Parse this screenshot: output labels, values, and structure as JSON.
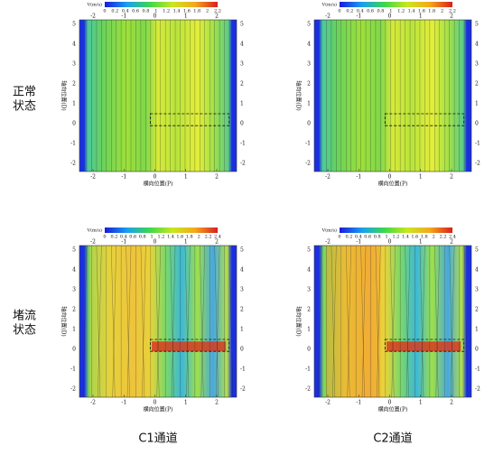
{
  "row_labels": [
    [
      "正常",
      "状态"
    ],
    [
      "堵流",
      "状态"
    ]
  ],
  "column_labels": [
    "C1通道",
    "C2通道"
  ],
  "panels": [
    {
      "colorbar_label": "V(m/s)",
      "colorbar_ticks": [
        0,
        0.2,
        0.4,
        0.6,
        0.8,
        1,
        1.2,
        1.4,
        1.6,
        1.8,
        2,
        2.2
      ],
      "x_ticks": [
        -2,
        -1,
        0,
        1,
        2
      ],
      "y_ticks": [
        5,
        4,
        3,
        2,
        1,
        0,
        -1,
        -2
      ],
      "x_label": "横向位置(P)",
      "y_label": "轴向位置(D)"
    },
    {
      "colorbar_label": "V(m/s)",
      "colorbar_ticks": [
        0,
        0.2,
        0.4,
        0.6,
        0.8,
        1,
        1.2,
        1.4,
        1.6,
        1.8,
        2,
        2.2
      ],
      "x_ticks": [
        -2,
        -1,
        0,
        1,
        2
      ],
      "y_ticks": [
        5,
        4,
        3,
        2,
        1,
        0,
        -1,
        -2
      ],
      "x_label": "横向位置(P)",
      "y_label": "轴向位置(D)"
    },
    {
      "colorbar_label": "V(m/s)",
      "colorbar_ticks": [
        0,
        0.2,
        0.4,
        0.6,
        0.8,
        1,
        1.2,
        1.4,
        1.6,
        1.8,
        2,
        2.2,
        2.4
      ],
      "x_ticks": [
        -2,
        -1,
        0,
        1,
        2
      ],
      "y_ticks": [
        5,
        4,
        3,
        2,
        1,
        0,
        -1,
        -2
      ],
      "x_label": "横向位置(P)",
      "y_label": "轴向位置(D)"
    },
    {
      "colorbar_label": "V(m/s)",
      "colorbar_ticks": [
        0,
        0.2,
        0.4,
        0.6,
        0.8,
        1,
        1.2,
        1.4,
        1.6,
        1.8,
        2,
        2.2,
        2.4
      ],
      "x_ticks": [
        -2,
        -1,
        0,
        1,
        2
      ],
      "y_ticks": [
        5,
        4,
        3,
        2,
        1,
        0,
        -1,
        -2
      ],
      "x_label": "横向位置(P)",
      "y_label": "轴向位置(D)"
    }
  ]
}
